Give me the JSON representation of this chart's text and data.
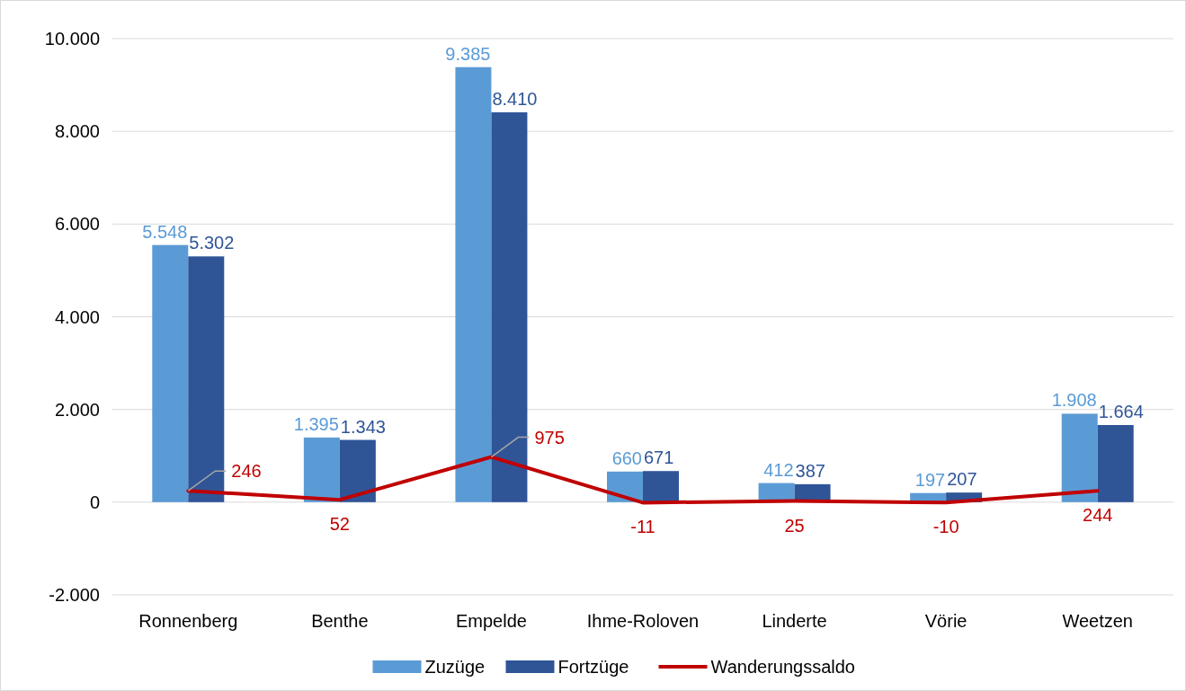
{
  "chart_data": {
    "type": "bar",
    "categories": [
      "Ronnenberg",
      "Benthe",
      "Empelde",
      "Ihme-Roloven",
      "Linderte",
      "Vörie",
      "Weetzen"
    ],
    "series": [
      {
        "name": "Zuzüge",
        "color": "#5b9bd5",
        "values": [
          5548,
          1395,
          9385,
          660,
          412,
          197,
          1908
        ],
        "value_labels": [
          "5.548",
          "1.395",
          "9.385",
          "660",
          "412",
          "197",
          "1.908"
        ]
      },
      {
        "name": "Fortzüge",
        "color": "#2f5597",
        "values": [
          5302,
          1343,
          8410,
          671,
          387,
          207,
          1664
        ],
        "value_labels": [
          "5.302",
          "1.343",
          "8.410",
          "671",
          "387",
          "207",
          "1.664"
        ]
      },
      {
        "name": "Wanderungssaldo",
        "type": "line",
        "color": "#c00000",
        "values": [
          246,
          52,
          975,
          -11,
          25,
          -10,
          244
        ],
        "value_labels": [
          "246",
          "52",
          "975",
          "-11",
          "25",
          "-10",
          "244"
        ]
      }
    ],
    "ylim": [
      -2000,
      10000
    ],
    "yticks": [
      {
        "value": -2000,
        "label": "-2.000"
      },
      {
        "value": 0,
        "label": "0"
      },
      {
        "value": 2000,
        "label": "2.000"
      },
      {
        "value": 4000,
        "label": "4.000"
      },
      {
        "value": 6000,
        "label": "6.000"
      },
      {
        "value": 8000,
        "label": "8.000"
      },
      {
        "value": 10000,
        "label": "10.000"
      }
    ],
    "grid": "y",
    "legend": "bottom",
    "marker": "none",
    "line_style": "solid"
  }
}
